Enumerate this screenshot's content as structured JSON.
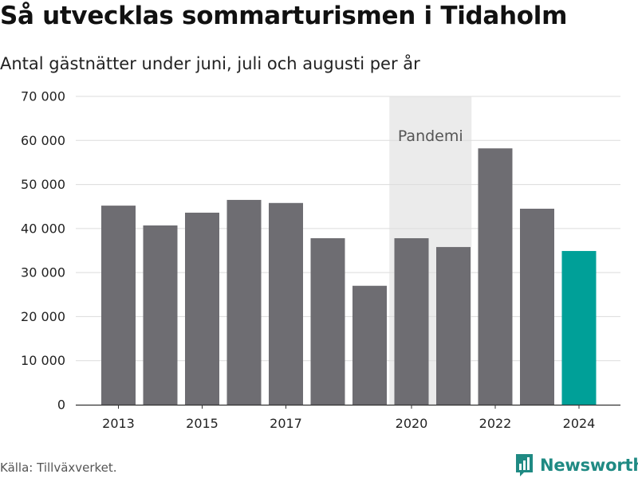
{
  "title": "Så utvecklas sommarturismen i Tidaholm",
  "subtitle": "Antal gästnätter under juni, juli och augusti per år",
  "source": "Källa: Tillväxverket.",
  "brand": "Newsworthy",
  "colors": {
    "bar": "#6e6d72",
    "highlight": "#00a098",
    "shade": "#ebebeb",
    "brand": "#1f8a83"
  },
  "chart_data": {
    "type": "bar",
    "title": "Så utvecklas sommarturismen i Tidaholm",
    "subtitle": "Antal gästnätter under juni, juli och augusti per år",
    "categories": [
      2013,
      2014,
      2015,
      2016,
      2017,
      2018,
      2019,
      2020,
      2021,
      2022,
      2023,
      2024
    ],
    "values": [
      45200,
      40700,
      43600,
      46500,
      45800,
      37800,
      27000,
      37800,
      35800,
      58200,
      44500,
      34900
    ],
    "highlight_category": 2024,
    "ylim": [
      0,
      70000
    ],
    "yticks": [
      0,
      10000,
      20000,
      30000,
      40000,
      50000,
      60000,
      70000
    ],
    "ytick_labels": [
      "0",
      "10 000",
      "20 000",
      "30 000",
      "40 000",
      "50 000",
      "60 000",
      "70 000"
    ],
    "xtick_labels": [
      {
        "year": 2013,
        "label": "2013"
      },
      {
        "year": 2015,
        "label": "2015"
      },
      {
        "year": 2017,
        "label": "2017"
      },
      {
        "year": 2020,
        "label": "2020"
      },
      {
        "year": 2022,
        "label": "2022"
      },
      {
        "year": 2024,
        "label": "2024"
      }
    ],
    "annotation": {
      "label": "Pandemi",
      "from": 2020,
      "to": 2021
    },
    "grid": true,
    "legend": "none"
  }
}
